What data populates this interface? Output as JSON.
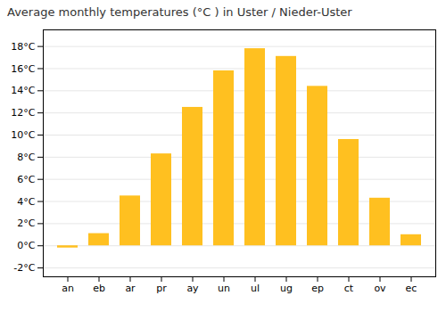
{
  "chart_data": {
    "type": "bar",
    "title": "Average monthly temperatures (°C ) in Uster / Nieder-Uster",
    "categories": [
      "an",
      "eb",
      "ar",
      "pr",
      "ay",
      "un",
      "ul",
      "ug",
      "ep",
      "ct",
      "ov",
      "ec"
    ],
    "values": [
      -0.2,
      1.1,
      4.5,
      8.3,
      12.5,
      15.8,
      17.8,
      17.1,
      14.4,
      9.6,
      4.3,
      1.0
    ],
    "color": "#FFC020",
    "ylim": [
      -2.8,
      19.5
    ],
    "yticks": [
      {
        "value": -2,
        "label": "-2°C"
      },
      {
        "value": 0,
        "label": "0°C"
      },
      {
        "value": 2,
        "label": "2°C"
      },
      {
        "value": 4,
        "label": "4°C"
      },
      {
        "value": 6,
        "label": "6°C"
      },
      {
        "value": 8,
        "label": "8°C"
      },
      {
        "value": 10,
        "label": "10°C"
      },
      {
        "value": 12,
        "label": "12°C"
      },
      {
        "value": 14,
        "label": "14°C"
      },
      {
        "value": 16,
        "label": "16°C"
      },
      {
        "value": 18,
        "label": "18°C"
      }
    ],
    "grid": true
  }
}
